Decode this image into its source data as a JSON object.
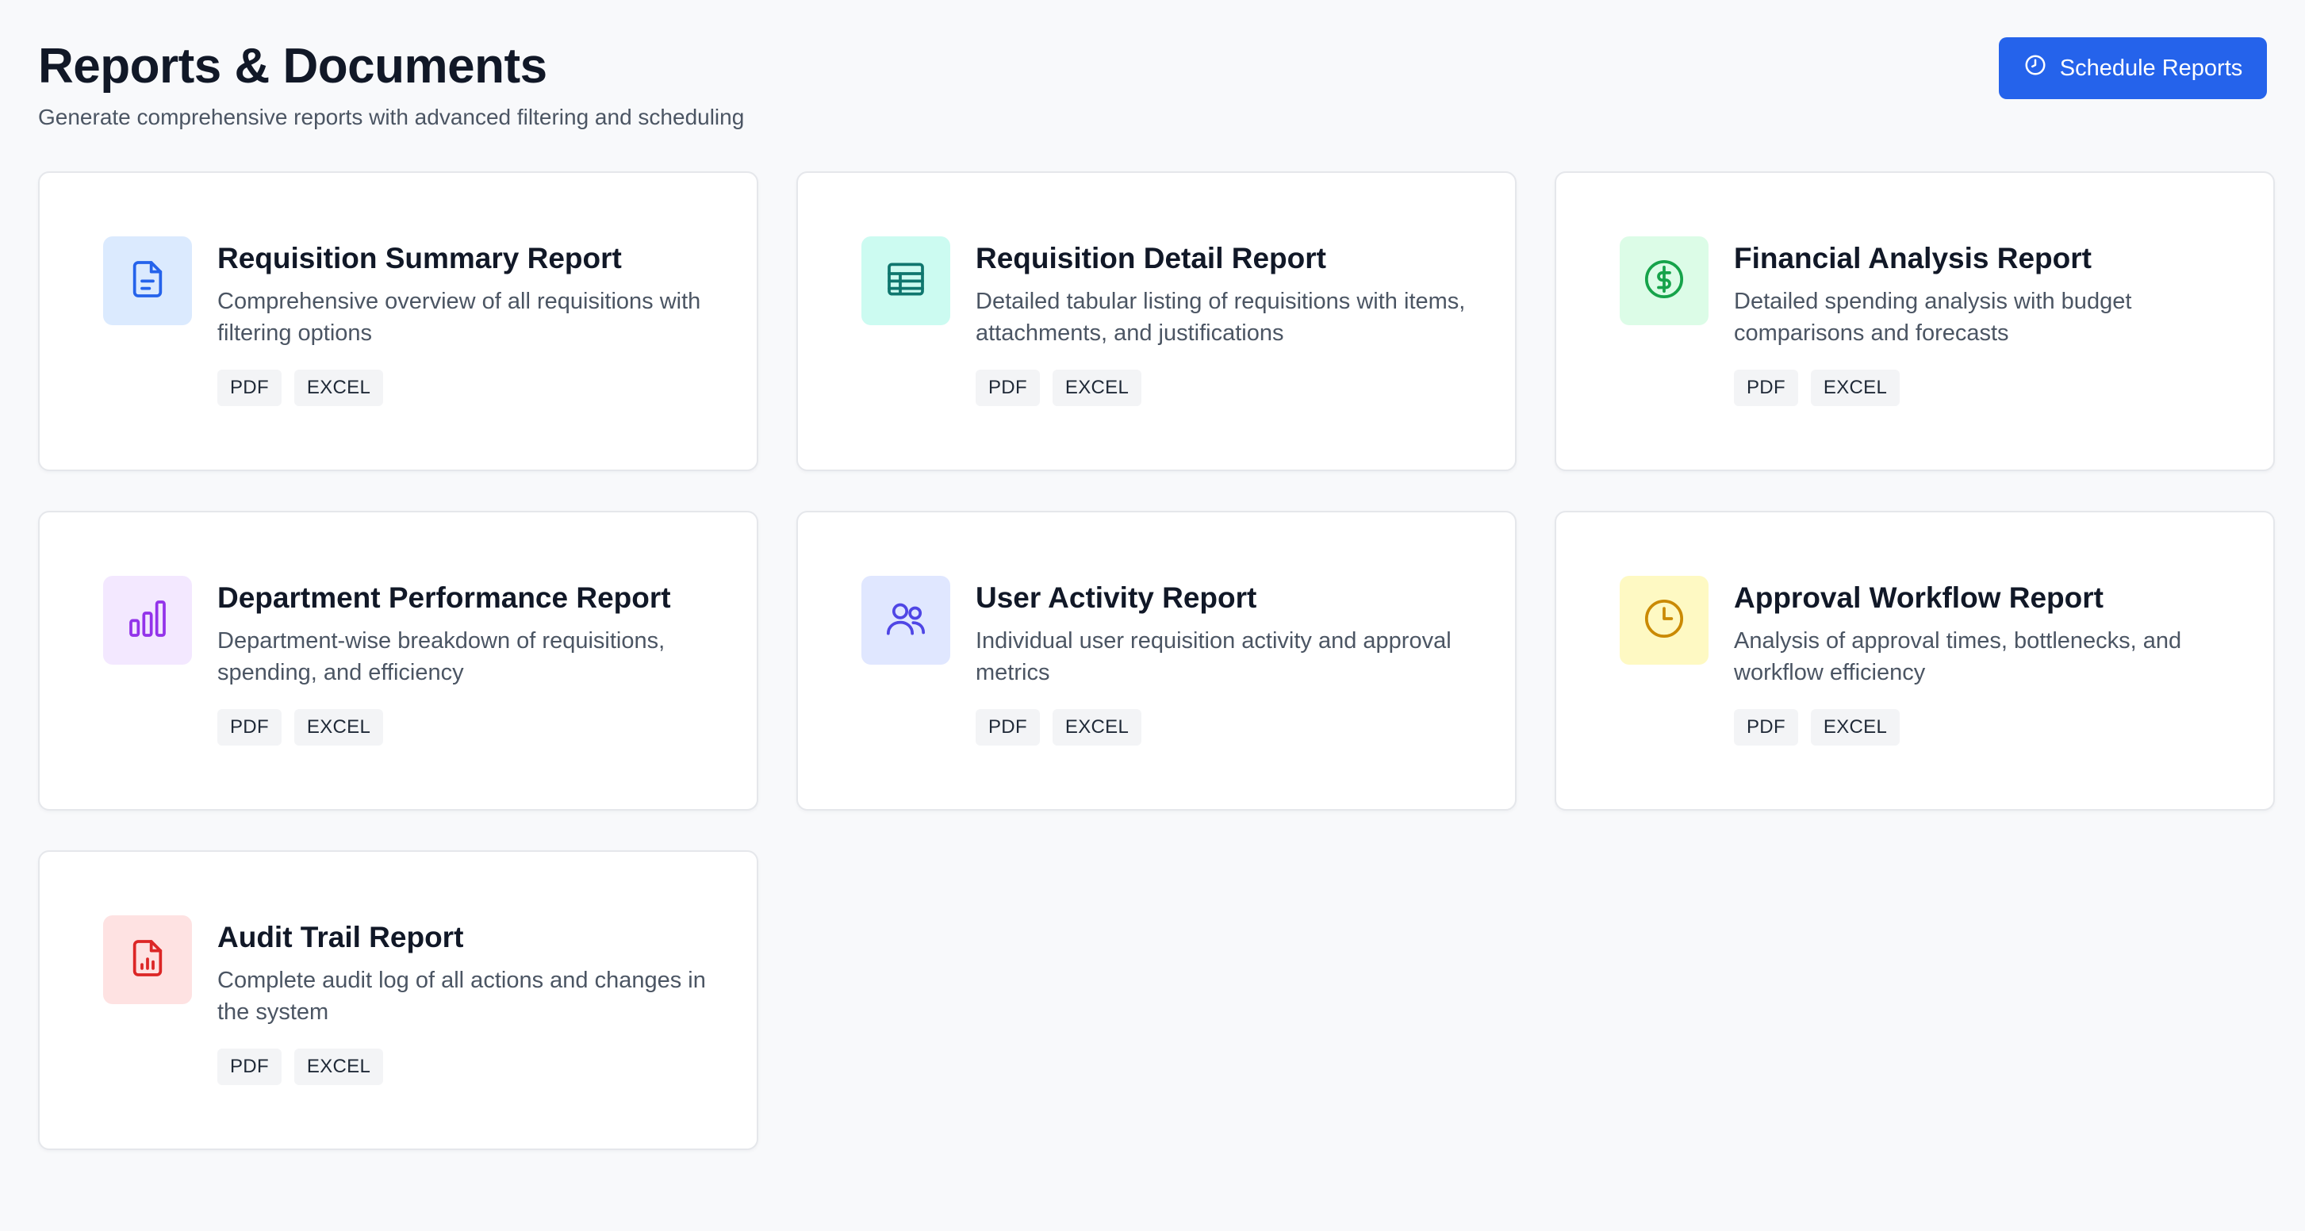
{
  "header": {
    "title": "Reports & Documents",
    "subtitle": "Generate comprehensive reports with advanced filtering and scheduling",
    "schedule_button": {
      "label": "Schedule Reports",
      "icon": "clock-icon",
      "color": "#2563eb"
    }
  },
  "reports": [
    {
      "title": "Requisition Summary Report",
      "description": "Comprehensive overview of all requisitions with filtering options",
      "icon": "document-icon",
      "icon_color": "#2563eb",
      "icon_bg": "#dbeafe",
      "formats": [
        "PDF",
        "EXCEL"
      ]
    },
    {
      "title": "Requisition Detail Report",
      "description": "Detailed tabular listing of requisitions with items, attachments, and justifications",
      "icon": "table-icon",
      "icon_color": "#0f766e",
      "icon_bg": "#ccfbf1",
      "formats": [
        "PDF",
        "EXCEL"
      ]
    },
    {
      "title": "Financial Analysis Report",
      "description": "Detailed spending analysis with budget comparisons and forecasts",
      "icon": "dollar-icon",
      "icon_color": "#16a34a",
      "icon_bg": "#dcfce7",
      "formats": [
        "PDF",
        "EXCEL"
      ]
    },
    {
      "title": "Department Performance Report",
      "description": "Department-wise breakdown of requisitions, spending, and efficiency",
      "icon": "bar-chart-icon",
      "icon_color": "#9333ea",
      "icon_bg": "#f3e8ff",
      "formats": [
        "PDF",
        "EXCEL"
      ]
    },
    {
      "title": "User Activity Report",
      "description": "Individual user requisition activity and approval metrics",
      "icon": "users-icon",
      "icon_color": "#4f46e5",
      "icon_bg": "#e0e7ff",
      "formats": [
        "PDF",
        "EXCEL"
      ]
    },
    {
      "title": "Approval Workflow Report",
      "description": "Analysis of approval times, bottlenecks, and workflow efficiency",
      "icon": "clock-icon",
      "icon_color": "#ca8a04",
      "icon_bg": "#fef9c3",
      "formats": [
        "PDF",
        "EXCEL"
      ]
    },
    {
      "title": "Audit Trail Report",
      "description": "Complete audit log of all actions and changes in the system",
      "icon": "file-chart-icon",
      "icon_color": "#dc2626",
      "icon_bg": "#fee2e2",
      "formats": [
        "PDF",
        "EXCEL"
      ]
    }
  ]
}
